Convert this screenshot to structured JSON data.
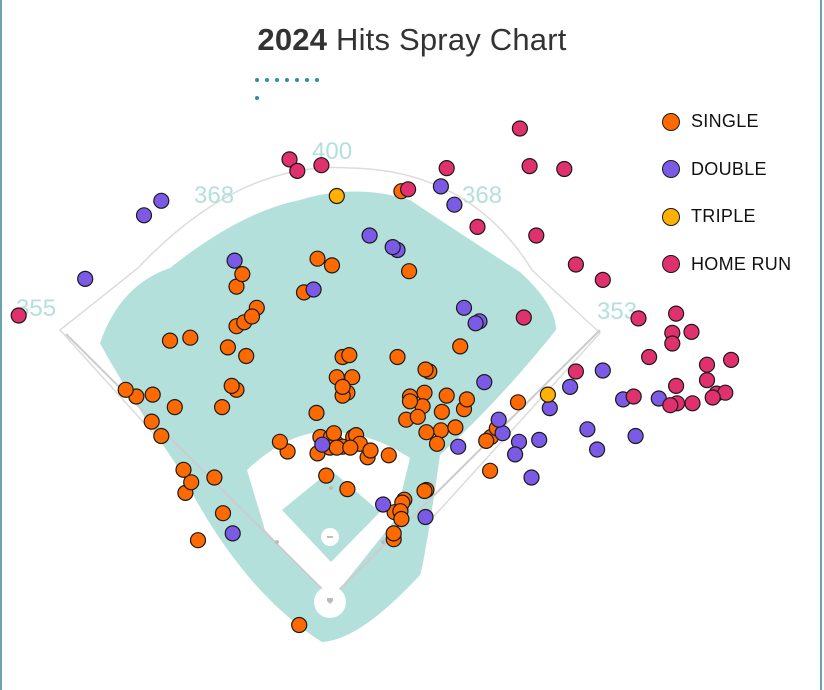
{
  "title": {
    "year": "2024",
    "text": " Hits Spray Chart"
  },
  "colors": {
    "single": "#ff6a00",
    "double": "#7b5ae6",
    "triple": "#ffb000",
    "home_run": "#e0306e",
    "grass": "#b4e0dc",
    "wall_label": "#b4e0dc",
    "frame": "#6aa4b0"
  },
  "legend": [
    {
      "key": "single",
      "label": "SINGLE",
      "color": "#ff6a00"
    },
    {
      "key": "double",
      "label": "DOUBLE",
      "color": "#7b5ae6"
    },
    {
      "key": "triple",
      "label": "TRIPLE",
      "color": "#ffb000"
    },
    {
      "key": "home_run",
      "label": "HOME RUN",
      "color": "#e0306e"
    }
  ],
  "wall_labels": {
    "left_field": "355",
    "left_center": "368",
    "center": "400",
    "right_center": "368",
    "right_field": "353"
  },
  "chart_data": {
    "type": "scatter",
    "title": "2024 Hits Spray Chart",
    "x_axis": "horizontal field position (ft), 0 = home plate, negative = left field",
    "y_axis": "distance toward center field (ft), 0 = home plate",
    "grid": false,
    "legend_placement": "top-right",
    "series": [
      {
        "name": "SINGLE",
        "color": "#ff6a00",
        "points": [
          [
            -33,
            -28
          ],
          [
            -112,
            88
          ],
          [
            -121,
            125
          ],
          [
            -138,
            60
          ],
          [
            -151,
            109
          ],
          [
            -145,
            120
          ],
          [
            -162,
            198
          ],
          [
            -153,
            133
          ],
          [
            -176,
            168
          ],
          [
            -186,
            183
          ],
          [
            -202,
            209
          ],
          [
            -185,
            211
          ],
          [
            -213,
            216
          ],
          [
            -167,
            267
          ],
          [
            -113,
            198
          ],
          [
            -88,
            251
          ],
          [
            -98,
            216
          ],
          [
            -103,
            220
          ],
          [
            -98,
            282
          ],
          [
            -98,
            323
          ],
          [
            -92,
            336
          ],
          [
            -90,
            286
          ],
          [
            -77,
            301
          ],
          [
            -28,
            317
          ],
          [
            1,
            345
          ],
          [
            -14,
            352
          ],
          [
            12,
            250
          ],
          [
            17,
            213
          ],
          [
            -15,
            192
          ],
          [
            6,
            229
          ],
          [
            -2,
            159
          ],
          [
            19,
            252
          ],
          [
            12,
            210
          ],
          [
            22,
            229
          ],
          [
            12,
            219
          ],
          [
            17,
            113
          ],
          [
            -45,
            152
          ],
          [
            -53,
            162
          ],
          [
            -107,
            260
          ],
          [
            -146,
            270
          ],
          [
            -82,
            292
          ],
          [
            -11,
            167
          ],
          [
            0,
            167
          ],
          [
            6,
            160
          ],
          [
            3,
            171
          ],
          [
            12,
            157
          ],
          [
            21,
            157
          ],
          [
            23,
            167
          ],
          [
            26,
            169
          ],
          [
            38,
            146
          ],
          [
            30,
            160
          ],
          [
            -5,
            127
          ],
          [
            -14,
            150
          ],
          [
            -1,
            156
          ],
          [
            6,
            156
          ],
          [
            20,
            156
          ],
          [
            41,
            153
          ],
          [
            65,
            61
          ],
          [
            65,
            67
          ],
          [
            72,
            91
          ],
          [
            76,
            102
          ],
          [
            99,
            112
          ],
          [
            97,
            111
          ],
          [
            74,
            99
          ],
          [
            70,
            87
          ],
          [
            66,
            89
          ],
          [
            72,
            90
          ],
          [
            73,
            82
          ],
          [
            102,
            235
          ],
          [
            114,
            174
          ],
          [
            97,
            213
          ],
          [
            138,
            196
          ],
          [
            166,
            167
          ],
          [
            194,
            203
          ],
          [
            165,
            132
          ],
          [
            110,
            160
          ],
          [
            78,
            185
          ],
          [
            82,
            209
          ],
          [
            95,
            199
          ],
          [
            90,
            188
          ],
          [
            99,
            172
          ],
          [
            81,
            339
          ],
          [
            73,
            422
          ],
          [
            98,
            237
          ],
          [
            69,
            250
          ],
          [
            82,
            204
          ],
          [
            60,
            148
          ],
          [
            115,
            193
          ],
          [
            129,
            177
          ],
          [
            141,
            206
          ],
          [
            161,
            163
          ],
          [
            172,
            176
          ],
          [
            134,
            261
          ],
          [
            120,
            210
          ]
        ]
      },
      {
        "name": "DOUBLE",
        "color": "#7b5ae6",
        "points": [
          [
            -255,
            331
          ],
          [
            -194,
            397
          ],
          [
            -176,
            412
          ],
          [
            -100,
            350
          ],
          [
            -18,
            320
          ],
          [
            40,
            376
          ],
          [
            69,
            361
          ],
          [
            114,
            427
          ],
          [
            128,
            408
          ],
          [
            64,
            364
          ],
          [
            138,
            301
          ],
          [
            154,
            287
          ],
          [
            150,
            285
          ],
          [
            159,
            224
          ],
          [
            178,
            171
          ],
          [
            195,
            162
          ],
          [
            216,
            164
          ],
          [
            266,
            175
          ],
          [
            227,
            197
          ],
          [
            248,
            219
          ],
          [
            282,
            236
          ],
          [
            303,
            206
          ],
          [
            340,
            207
          ],
          [
            316,
            168
          ],
          [
            276,
            154
          ],
          [
            174,
            185
          ],
          [
            191,
            149
          ],
          [
            208,
            125
          ],
          [
            132,
            157
          ],
          [
            98,
            84
          ],
          [
            54,
            97
          ],
          [
            -102,
            67
          ],
          [
            -9,
            159
          ]
        ]
      },
      {
        "name": "TRIPLE",
        "color": "#ffb000",
        "points": [
          [
            6,
            417
          ],
          [
            225,
            211
          ]
        ]
      },
      {
        "name": "HOME RUN",
        "color": "#e0306e",
        "points": [
          [
            -324,
            293
          ],
          [
            -43,
            455
          ],
          [
            -35,
            443
          ],
          [
            -10,
            449
          ],
          [
            80,
            424
          ],
          [
            120,
            446
          ],
          [
            196,
            487
          ],
          [
            242,
            445
          ],
          [
            206,
            448
          ],
          [
            152,
            385
          ],
          [
            213,
            376
          ],
          [
            254,
            346
          ],
          [
            282,
            330
          ],
          [
            319,
            290
          ],
          [
            330,
            250
          ],
          [
            400,
            212
          ],
          [
            354,
            275
          ],
          [
            354,
            264
          ],
          [
            374,
            276
          ],
          [
            415,
            247
          ],
          [
            390,
            242
          ],
          [
            358,
            220
          ],
          [
            409,
            213
          ],
          [
            396,
            208
          ],
          [
            390,
            226
          ],
          [
            375,
            202
          ],
          [
            359,
            202
          ],
          [
            352,
            200
          ],
          [
            358,
            295
          ],
          [
            314,
            209
          ],
          [
            254,
            235
          ],
          [
            200,
            291
          ]
        ]
      }
    ]
  }
}
